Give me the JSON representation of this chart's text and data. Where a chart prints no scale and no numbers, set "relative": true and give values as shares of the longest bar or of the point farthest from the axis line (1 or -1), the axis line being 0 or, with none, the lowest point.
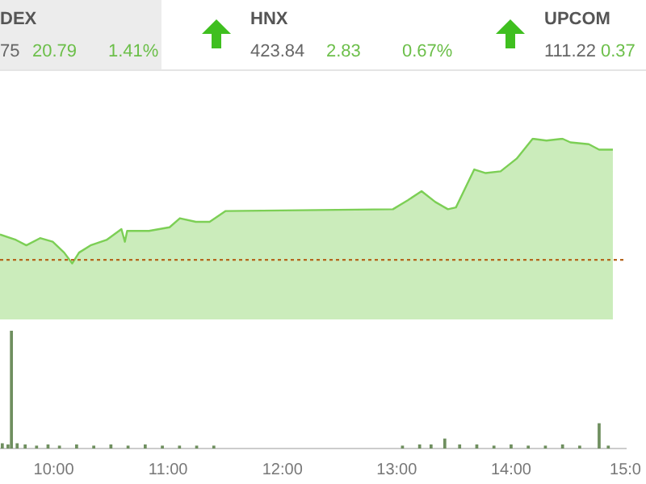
{
  "chart_data": [
    {
      "type": "other",
      "annotations": [
        "DEX",
        "75",
        "20.79",
        "1.41%",
        "HNX",
        "423.84",
        "2.83",
        "0.67%",
        "UPCOM",
        "111.22",
        "0.37"
      ]
    },
    {
      "type": "area",
      "relative": true,
      "x": [
        9.53,
        9.67,
        9.76,
        9.88,
        9.99,
        10.09,
        10.16,
        10.22,
        10.32,
        10.46,
        10.59,
        10.62,
        10.64,
        10.83,
        11.01,
        11.1,
        11.24,
        11.36,
        11.5,
        12.96,
        13.09,
        13.21,
        13.33,
        13.44,
        13.51,
        13.67,
        13.77,
        13.9,
        14.04,
        14.18,
        14.3,
        14.44,
        14.51,
        14.67,
        14.76,
        14.88
      ],
      "series": [
        {
          "color": "#7ccf55",
          "values": [
            0.47,
            0.44,
            0.41,
            0.45,
            0.43,
            0.37,
            0.31,
            0.37,
            0.41,
            0.44,
            0.5,
            0.43,
            0.49,
            0.49,
            0.51,
            0.56,
            0.54,
            0.54,
            0.6,
            0.61,
            0.66,
            0.71,
            0.65,
            0.61,
            0.62,
            0.83,
            0.81,
            0.82,
            0.89,
            1,
            0.99,
            1,
            0.98,
            0.97,
            0.94,
            0.94
          ]
        }
      ],
      "xlim": [
        9.53,
        15
      ],
      "tick_labels": false,
      "ref_lines": [
        {
          "axis": "y",
          "value": 0.33,
          "color": "#b5651d",
          "line_style": "dotted"
        }
      ]
    },
    {
      "type": "bar",
      "relative": true,
      "x": [
        9.55,
        9.6,
        9.63,
        9.68,
        9.75,
        9.85,
        9.95,
        10.05,
        10.2,
        10.35,
        10.5,
        10.65,
        10.8,
        10.95,
        11.1,
        11.25,
        11.4,
        13.05,
        13.2,
        13.3,
        13.42,
        13.55,
        13.7,
        13.85,
        14,
        14.15,
        14.3,
        14.45,
        14.6,
        14.77,
        14.85
      ],
      "series": [
        {
          "color": "#6f8f5f",
          "values": [
            0.04,
            0.03,
            1,
            0.04,
            0.03,
            0.02,
            0.03,
            0.02,
            0.03,
            0.02,
            0.03,
            0.02,
            0.03,
            0.02,
            0.02,
            0.02,
            0.02,
            0.02,
            0.03,
            0.03,
            0.08,
            0.03,
            0.03,
            0.02,
            0.03,
            0.02,
            0.02,
            0.03,
            0.02,
            0.21,
            0.02
          ]
        }
      ],
      "xlim": [
        9.53,
        15
      ],
      "xticks": [
        {
          "value": 10,
          "label": "10:00"
        },
        {
          "value": 11,
          "label": "11:00"
        },
        {
          "value": 12,
          "label": "12:00"
        },
        {
          "value": 13,
          "label": "13:00"
        },
        {
          "value": 14,
          "label": "14:00"
        },
        {
          "value": 15,
          "label": "15:0"
        }
      ],
      "tick_labels": "x"
    }
  ]
}
